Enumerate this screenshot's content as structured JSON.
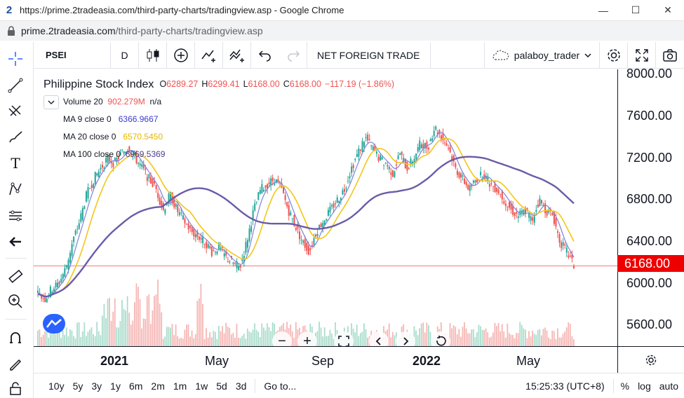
{
  "window": {
    "title": "https://prime.2tradeasia.com/third-party-charts/tradingview.asp - Google Chrome",
    "logo": "2",
    "minimize": "—",
    "maximize": "☐",
    "close": "✕"
  },
  "address": {
    "host": "prime.2tradeasia.com",
    "path": "/third-party-charts/tradingview.asp"
  },
  "toolbar": {
    "symbol": "PSEI",
    "interval": "D",
    "net_foreign": "NET FOREIGN TRADE",
    "user": "palaboy_trader"
  },
  "legend": {
    "title": "Philippine Stock Index",
    "open_label": "O",
    "open": "6289.27",
    "high_label": "H",
    "high": "6299.41",
    "low_label": "L",
    "low": "6168.00",
    "close_label": "C",
    "close": "6168.00",
    "change": "−117.19 (−1.86%)",
    "volume_label": "Volume 20",
    "volume_value": "902.279M",
    "volume_na": "n/a",
    "ma9_label": "MA 9 close 0",
    "ma9_value": "6366.9667",
    "ma20_label": "MA 20 close 0",
    "ma20_value": "6570.5450",
    "ma100_label": "MA 100 close 0",
    "ma100_value": "6969.5369"
  },
  "price_axis": {
    "ticks": [
      "8000.00",
      "7600.00",
      "7200.00",
      "6800.00",
      "6400.00",
      "6000.00",
      "5600.00"
    ],
    "last_price": "6168.00"
  },
  "time_axis": {
    "labels": [
      "2021",
      "May",
      "Sep",
      "2022",
      "May"
    ]
  },
  "ranges": [
    "10y",
    "5y",
    "3y",
    "1y",
    "6m",
    "2m",
    "1m",
    "1w",
    "5d",
    "3d"
  ],
  "goto": "Go to...",
  "clock": "15:25:33 (UTC+8)",
  "scale_options": [
    "%",
    "log",
    "auto"
  ],
  "colors": {
    "up": "#26a69a",
    "down": "#ef5350",
    "ma9": "#7c83d9",
    "ma20": "#f5c518",
    "ma100": "#6b5ba8",
    "last_price": "#ef0000"
  },
  "chart_data": {
    "type": "candlestick",
    "title": "Philippine Stock Index",
    "series": [
      {
        "name": "MA 9 close 0"
      },
      {
        "name": "MA 20 close 0"
      },
      {
        "name": "MA 100 close 0"
      },
      {
        "name": "Volume 20"
      }
    ],
    "ylim": [
      5400,
      8000
    ],
    "close_approx": [
      5900,
      5850,
      5950,
      6000,
      6150,
      6400,
      6600,
      6850,
      7000,
      7100,
      7200,
      7150,
      7250,
      7300,
      7200,
      7100,
      7000,
      6900,
      6700,
      6850,
      6700,
      6600,
      6500,
      6450,
      6400,
      6300,
      6350,
      6250,
      6200,
      6150,
      6400,
      6700,
      6900,
      6950,
      7000,
      6900,
      6700,
      6550,
      6400,
      6300,
      6500,
      6600,
      6700,
      6800,
      6900,
      7100,
      7250,
      7400,
      7300,
      7200,
      7150,
      7050,
      7250,
      7100,
      7200,
      7350,
      7300,
      7500,
      7400,
      7300,
      7100,
      7000,
      6900,
      7000,
      7050,
      6950,
      6900,
      6800,
      6700,
      6650,
      6700,
      6600,
      6800,
      6700,
      6650,
      6400,
      6300,
      6168
    ]
  }
}
